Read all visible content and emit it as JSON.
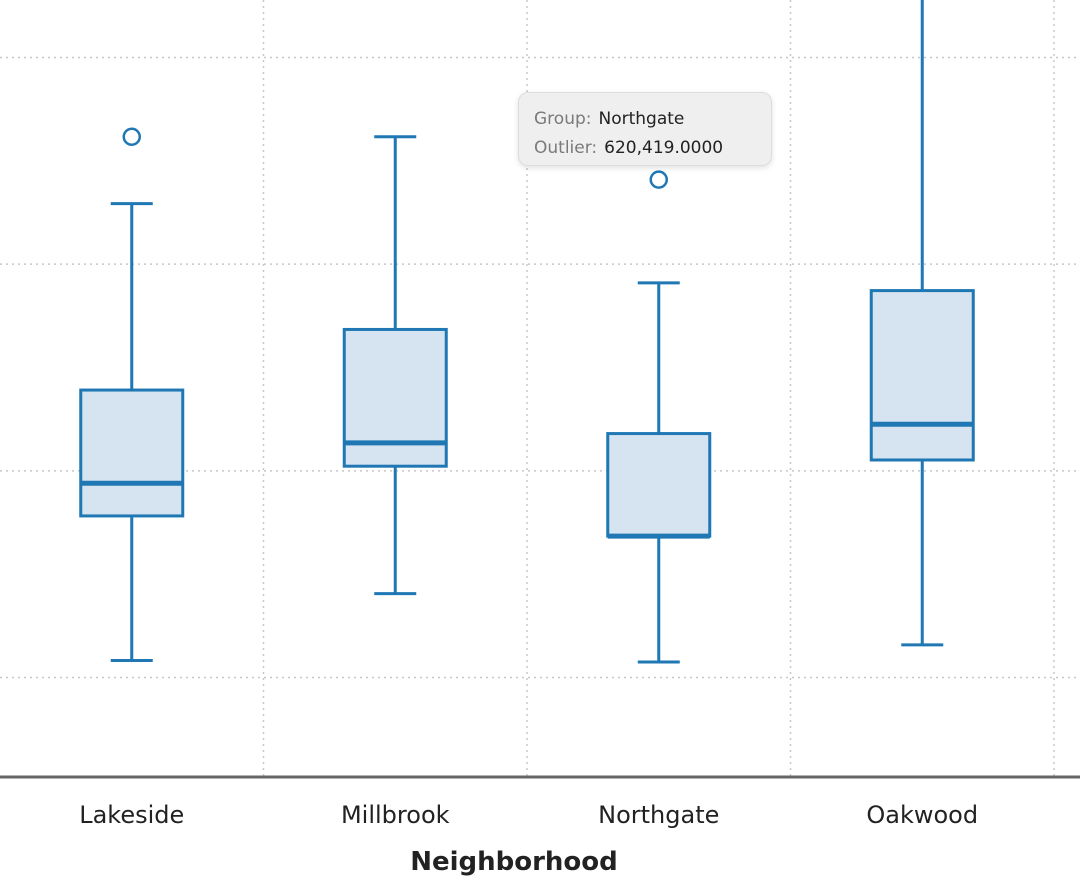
{
  "chart_data": {
    "type": "box",
    "xlabel": "Neighborhood",
    "ylabel": "",
    "categories": [
      "Lakeside",
      "Millbrook",
      "Northgate",
      "Oakwood"
    ],
    "ylim": [
      236000,
      736000
    ],
    "y_gridlines": [
      300000,
      433000,
      566000,
      699000
    ],
    "grid": true,
    "boxes": [
      {
        "name": "Lakeside",
        "whisker_low": 311000,
        "q1": 404000,
        "median": 425000,
        "q3": 485000,
        "whisker_high": 605000,
        "outliers": [
          648000
        ]
      },
      {
        "name": "Millbrook",
        "whisker_low": 354000,
        "q1": 436000,
        "median": 451000,
        "q3": 524000,
        "whisker_high": 648000,
        "outliers": []
      },
      {
        "name": "Northgate",
        "whisker_low": 310000,
        "q1": 391000,
        "median": 391000,
        "q3": 457000,
        "whisker_high": 554000,
        "outliers": [
          620419
        ]
      },
      {
        "name": "Oakwood",
        "whisker_low": 321000,
        "q1": 440000,
        "median": 463000,
        "q3": 549000,
        "whisker_high": 736000,
        "outliers": []
      }
    ],
    "colors": {
      "stroke": "#1f77b4",
      "fill": "#d6e4f1",
      "grid": "#c8c8c8",
      "axis": "#666666"
    }
  },
  "tooltip": {
    "group_label": "Group:",
    "group_value": "Northgate",
    "outlier_label": "Outlier:",
    "outlier_value": "620,419.0000"
  }
}
